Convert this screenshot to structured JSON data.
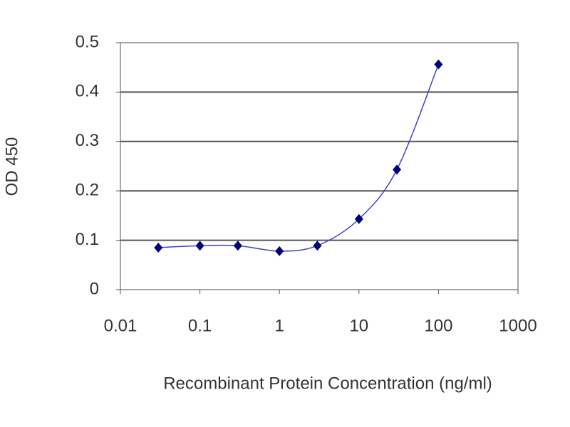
{
  "chart_data": {
    "type": "line",
    "x_label": "Recombinant Protein Concentration (ng/ml)",
    "y_label": "OD 450",
    "x": [
      0.03,
      0.1,
      0.3,
      1,
      3,
      10,
      30,
      100
    ],
    "values": [
      0.085,
      0.089,
      0.089,
      0.078,
      0.089,
      0.143,
      0.243,
      0.456
    ],
    "color": "#3f3fcf",
    "marker_color": "#00007a",
    "xscale": "log",
    "xlim": [
      0.01,
      1000
    ],
    "xticks": [
      0.01,
      0.1,
      1,
      10,
      100,
      1000
    ],
    "ylim": [
      0,
      0.5
    ],
    "yticks": [
      0,
      0.1,
      0.2,
      0.3,
      0.4,
      0.5
    ],
    "grid": true
  }
}
